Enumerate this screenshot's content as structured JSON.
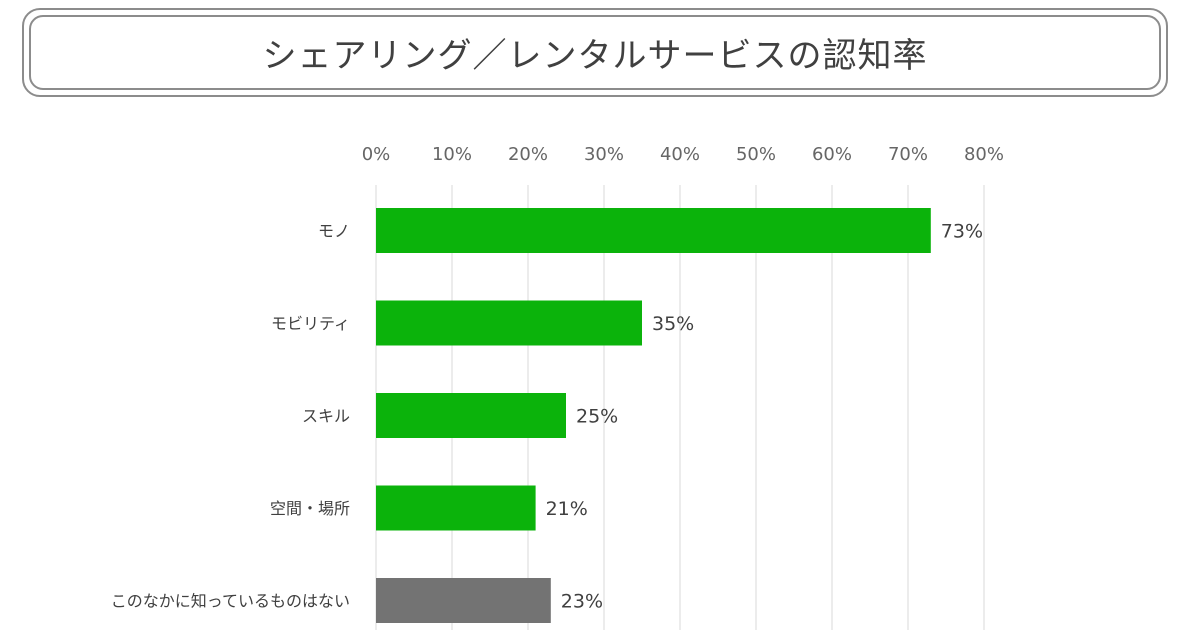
{
  "chart_data": {
    "type": "bar",
    "orientation": "horizontal",
    "title": "シェアリング／レンタルサービスの認知率",
    "categories": [
      "モノ",
      "モビリティ",
      "スキル",
      "空間・場所",
      "このなかに知っているものはない"
    ],
    "values": [
      73,
      35,
      25,
      21,
      23
    ],
    "value_labels": [
      "73%",
      "35%",
      "25%",
      "21%",
      "23%"
    ],
    "x_ticks": [
      "0%",
      "10%",
      "20%",
      "30%",
      "40%",
      "50%",
      "60%",
      "70%",
      "80%"
    ],
    "xlim": [
      0,
      80
    ],
    "axis_position": "top",
    "grid": true,
    "bar_colors": [
      "#0bb30b",
      "#0bb30b",
      "#0bb30b",
      "#0bb30b",
      "#737373"
    ]
  }
}
